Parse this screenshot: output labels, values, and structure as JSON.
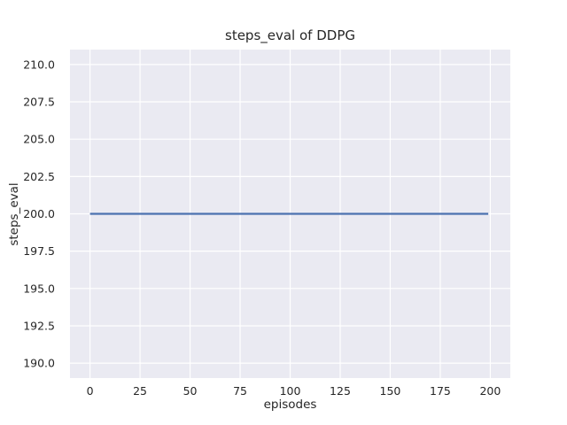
{
  "chart_data": {
    "type": "line",
    "title": "steps_eval of DDPG",
    "xlabel": "episodes",
    "ylabel": "steps_eval",
    "series": [
      {
        "name": "steps_eval",
        "points": [
          [
            0,
            200
          ],
          [
            199,
            200
          ]
        ],
        "constant_value": 200,
        "x_start": 0,
        "x_end": 199,
        "color": "#4C72B0",
        "line_width": 2.2
      }
    ],
    "xticks": [
      0,
      25,
      50,
      75,
      100,
      125,
      150,
      175,
      200
    ],
    "xtick_labels": [
      "0",
      "25",
      "50",
      "75",
      "100",
      "125",
      "150",
      "175",
      "200"
    ],
    "yticks": [
      190,
      192.5,
      195,
      197.5,
      200,
      202.5,
      205,
      207.5,
      210
    ],
    "ytick_labels": [
      "190.0",
      "192.5",
      "195.0",
      "197.5",
      "200.0",
      "202.5",
      "205.0",
      "207.5",
      "210.0"
    ],
    "xlim": [
      -10,
      210
    ],
    "ylim": [
      189,
      211
    ],
    "grid": true,
    "legend": null,
    "style": {
      "figure_background": "#FFFFFF",
      "axes_background": "#EAEAF2",
      "grid_color": "#FFFFFF",
      "text_color": "#262626"
    }
  }
}
